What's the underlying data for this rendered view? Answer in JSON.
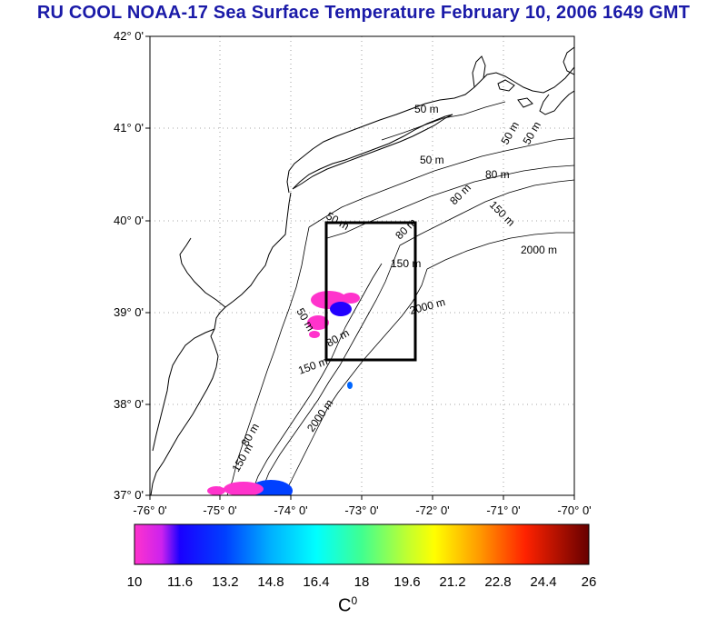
{
  "title": "RU COOL  NOAA-17 Sea Surface Temperature February 10, 2006 1649 GMT",
  "axes": {
    "lat_labels": [
      "42° 0'",
      "41° 0'",
      "40° 0'",
      "39° 0'",
      "38° 0'",
      "37° 0'"
    ],
    "lon_labels": [
      "-76° 0'",
      "-75° 0'",
      "-74° 0'",
      "-73° 0'",
      "-72° 0'",
      "-71° 0'",
      "-70° 0'"
    ],
    "lat_range": [
      37,
      42
    ],
    "lon_range": [
      -76,
      -70
    ]
  },
  "contours": {
    "50_1": "50 m",
    "50_2": "50 m",
    "50_3": "50 m",
    "50_4": "50 m",
    "50_5": "50 m",
    "80_1": "80 m",
    "80_2": "80 m",
    "80_3": "80 m",
    "80_4": "80 m",
    "80_5": "80 m",
    "150_1": "150 m",
    "150_2": "150 m",
    "150_3": "150 m",
    "150_4": "150 m",
    "2000_1": "2000 m",
    "2000_2": "2000 m",
    "2000_3": "2000 m"
  },
  "study_box": {
    "lon": [
      -73.5,
      -72.3
    ],
    "lat": [
      38.5,
      40.0
    ]
  },
  "colorbar": {
    "min": 10,
    "max": 26,
    "ticks": [
      "10",
      "11.6",
      "13.2",
      "14.8",
      "16.4",
      "18",
      "19.6",
      "21.2",
      "22.8",
      "24.4",
      "26"
    ],
    "unit": "C",
    "unit_sup": "0",
    "colors": [
      "#ff33cc",
      "#0000ff",
      "#00ffff",
      "#00ff00",
      "#ffff00",
      "#ff0000",
      "#660000"
    ]
  }
}
